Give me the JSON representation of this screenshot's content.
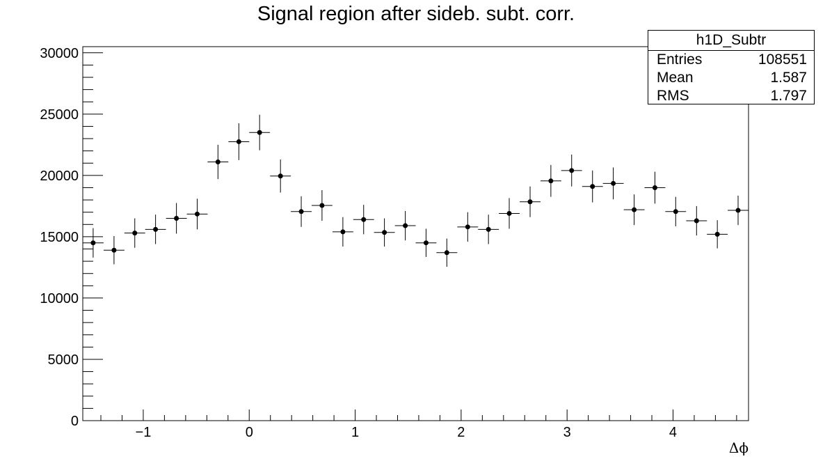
{
  "chart_data": {
    "type": "scatter",
    "title": "Signal region after sideb. subt. corr.",
    "xlabel": "Δϕ",
    "ylabel": "",
    "xlim": [
      -1.5708,
      4.7124
    ],
    "ylim": [
      0,
      30500
    ],
    "x_ticks": [
      {
        "value": -1,
        "label": "−1"
      },
      {
        "value": 0,
        "label": "0"
      },
      {
        "value": 1,
        "label": "1"
      },
      {
        "value": 2,
        "label": "2"
      },
      {
        "value": 3,
        "label": "3"
      },
      {
        "value": 4,
        "label": "4"
      }
    ],
    "y_ticks": [
      {
        "value": 0,
        "label": "0"
      },
      {
        "value": 5000,
        "label": "5000"
      },
      {
        "value": 10000,
        "label": "10000"
      },
      {
        "value": 15000,
        "label": "15000"
      },
      {
        "value": 20000,
        "label": "20000"
      },
      {
        "value": 25000,
        "label": "25000"
      },
      {
        "value": 30000,
        "label": "30000"
      }
    ],
    "grid": false,
    "legend": "top-right stats box",
    "bin_width": 0.1963,
    "series": [
      {
        "x": [
          -1.473,
          -1.276,
          -1.08,
          -0.884,
          -0.687,
          -0.491,
          -0.295,
          -0.098,
          0.098,
          0.295,
          0.491,
          0.687,
          0.884,
          1.08,
          1.276,
          1.473,
          1.669,
          1.865,
          2.062,
          2.258,
          2.454,
          2.651,
          2.847,
          3.043,
          3.24,
          3.436,
          3.633,
          3.829,
          4.025,
          4.222,
          4.418,
          4.614
        ],
        "y": [
          14500,
          13900,
          15300,
          15600,
          16500,
          16850,
          21100,
          22750,
          23500,
          19950,
          17050,
          17550,
          15400,
          16400,
          15350,
          15900,
          14500,
          13700,
          15800,
          15600,
          16900,
          17850,
          19550,
          20400,
          19100,
          19350,
          17200,
          19000,
          17050,
          16300,
          15200,
          17150
        ],
        "err": [
          1200,
          1150,
          1200,
          1200,
          1250,
          1250,
          1400,
          1500,
          1450,
          1350,
          1250,
          1250,
          1200,
          1200,
          1150,
          1200,
          1150,
          1150,
          1200,
          1200,
          1250,
          1250,
          1300,
          1300,
          1300,
          1300,
          1250,
          1300,
          1200,
          1200,
          1150,
          1200
        ]
      }
    ]
  },
  "stats_box": {
    "name": "h1D_Subtr",
    "rows": [
      {
        "label": "Entries",
        "value": "108551"
      },
      {
        "label": "Mean",
        "value": "1.587"
      },
      {
        "label": "RMS",
        "value": "1.797"
      }
    ]
  }
}
